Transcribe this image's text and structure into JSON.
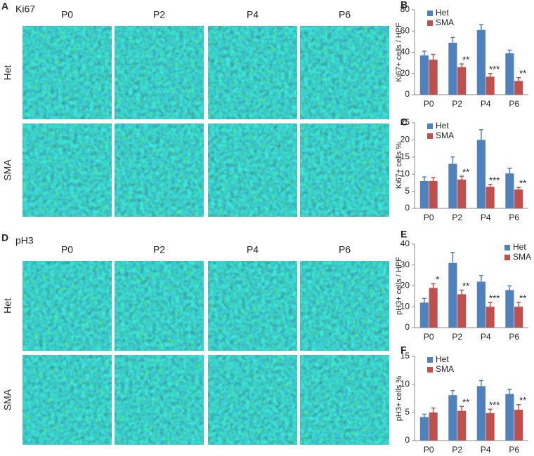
{
  "image_panels": [
    {
      "label": "A",
      "title": "Ki67",
      "columns": [
        "P0",
        "P2",
        "P4",
        "P6"
      ],
      "rows": [
        "Het",
        "SMA"
      ]
    },
    {
      "label": "D",
      "title": "pH3",
      "columns": [
        "P0",
        "P2",
        "P4",
        "P6"
      ],
      "rows": [
        "Het",
        "SMA"
      ]
    }
  ],
  "chart_data": [
    {
      "label": "B",
      "type": "bar",
      "ylabel": "Ki67+ cells / HPF",
      "categories": [
        "P0",
        "P2",
        "P4",
        "P6"
      ],
      "ylim": [
        0,
        80
      ],
      "yticks": [
        0,
        20,
        40,
        60,
        80
      ],
      "legend": "upper left",
      "series": [
        {
          "name": "Het",
          "color": "#4f81bd",
          "values": [
            37,
            49,
            61,
            39
          ],
          "errors": [
            4,
            5,
            5,
            3
          ]
        },
        {
          "name": "SMA",
          "color": "#c0504d",
          "values": [
            33,
            26,
            17,
            13
          ],
          "errors": [
            5,
            3,
            3,
            3
          ],
          "annotations": [
            null,
            "**",
            "***",
            "**"
          ]
        }
      ]
    },
    {
      "label": "C",
      "type": "bar",
      "ylabel": "Ki67+ cells %",
      "categories": [
        "P0",
        "P2",
        "P4",
        "P6"
      ],
      "ylim": [
        0,
        25
      ],
      "yticks": [
        0,
        5,
        10,
        15,
        20,
        25
      ],
      "legend": "upper left",
      "series": [
        {
          "name": "Het",
          "color": "#4f81bd",
          "values": [
            8,
            13,
            20,
            10.2
          ],
          "errors": [
            1.2,
            2,
            3,
            1.5
          ]
        },
        {
          "name": "SMA",
          "color": "#c0504d",
          "values": [
            8,
            8.4,
            6.3,
            5.5
          ],
          "errors": [
            1,
            1,
            0.7,
            0.6
          ],
          "annotations": [
            null,
            "**",
            "***",
            "**"
          ]
        }
      ]
    },
    {
      "label": "E",
      "type": "bar",
      "ylabel": "pH3+ cells / HPF",
      "categories": [
        "P0",
        "P2",
        "P4",
        "P6"
      ],
      "ylim": [
        0,
        40
      ],
      "yticks": [
        0,
        10,
        20,
        30,
        40
      ],
      "legend": "upper right",
      "series": [
        {
          "name": "Het",
          "color": "#4f81bd",
          "values": [
            12,
            31,
            22,
            18
          ],
          "errors": [
            2,
            5,
            3,
            2
          ]
        },
        {
          "name": "SMA",
          "color": "#c0504d",
          "values": [
            19,
            16,
            10,
            10
          ],
          "errors": [
            2,
            2,
            2,
            2
          ],
          "annotations": [
            "*",
            "**",
            "***",
            "**"
          ]
        }
      ]
    },
    {
      "label": "F",
      "type": "bar",
      "ylabel": "pH3+ cells %",
      "categories": [
        "P0",
        "P2",
        "P4",
        "P6"
      ],
      "ylim": [
        0,
        15
      ],
      "yticks": [
        0,
        5,
        10,
        15
      ],
      "legend": "upper left",
      "series": [
        {
          "name": "Het",
          "color": "#4f81bd",
          "values": [
            4.2,
            8.1,
            9.7,
            8.3
          ],
          "errors": [
            0.5,
            0.8,
            1,
            0.8
          ]
        },
        {
          "name": "SMA",
          "color": "#c0504d",
          "values": [
            5,
            5.3,
            4.9,
            5.5
          ],
          "errors": [
            0.8,
            0.8,
            0.7,
            0.9
          ],
          "annotations": [
            null,
            "**",
            "***",
            "**"
          ]
        }
      ]
    }
  ]
}
